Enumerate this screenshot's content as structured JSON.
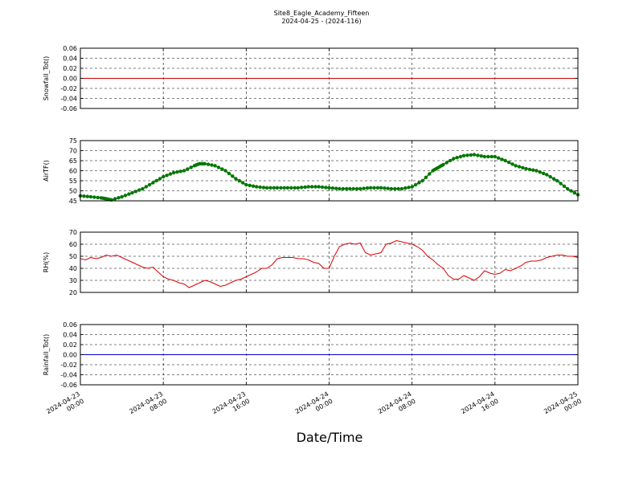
{
  "figure": {
    "title_line1": "Site8_Eagle_Academy_Fifteen",
    "title_line2": "2024-04-25 - (2024-116)",
    "xlabel": "Date/Time"
  },
  "chart_data": [
    {
      "type": "line",
      "ylabel": "Snowfall_Tot()",
      "ylim": [
        -0.06,
        0.06
      ],
      "yticks": [
        -0.06,
        -0.04,
        -0.02,
        0.0,
        0.02,
        0.04,
        0.06
      ],
      "ytick_labels": [
        "-0.06",
        "-0.04",
        "-0.02",
        "0.00",
        "0.02",
        "0.04",
        "0.06"
      ],
      "xlim_hours": [
        0,
        48
      ],
      "grid": true,
      "color": "#cc0000",
      "marker": false,
      "x_hours": [
        0,
        48
      ],
      "y": [
        0,
        0
      ]
    },
    {
      "type": "line",
      "ylabel": "AirTF()",
      "ylim": [
        45,
        75
      ],
      "yticks": [
        45,
        50,
        55,
        60,
        65,
        70,
        75
      ],
      "ytick_labels": [
        "45",
        "50",
        "55",
        "60",
        "65",
        "70",
        "75"
      ],
      "xlim_hours": [
        0,
        48
      ],
      "grid": true,
      "color": "#007700",
      "marker": true,
      "x_hours": [
        0,
        1,
        2,
        2.5,
        3,
        4,
        5,
        6,
        7,
        8,
        9,
        10,
        11,
        11.5,
        12,
        13,
        14,
        15,
        16,
        17,
        18,
        19,
        20,
        21,
        22,
        23,
        24,
        25,
        26,
        27,
        28,
        29,
        30,
        31,
        32,
        33,
        34,
        34.5,
        35,
        36,
        37,
        38,
        39,
        40,
        41,
        42,
        43,
        44,
        45,
        46,
        47,
        48
      ],
      "y": [
        47.5,
        47,
        46.5,
        46,
        45.5,
        47,
        49,
        51,
        54,
        57,
        59,
        60,
        62.5,
        63.5,
        63.5,
        62.5,
        60,
        56,
        53,
        52,
        51.5,
        51.5,
        51.5,
        51.5,
        52,
        52,
        51.5,
        51,
        51,
        51,
        51.5,
        51.5,
        51,
        51,
        52,
        55,
        60,
        61.5,
        63,
        66,
        67.5,
        68,
        67,
        67,
        65,
        62.5,
        61,
        60,
        58,
        55,
        51,
        48
      ]
    },
    {
      "type": "line",
      "ylabel": "RH(%)",
      "ylim": [
        20,
        70
      ],
      "yticks": [
        20,
        30,
        40,
        50,
        60,
        70
      ],
      "ytick_labels": [
        "20",
        "30",
        "40",
        "50",
        "60",
        "70"
      ],
      "xlim_hours": [
        0,
        48
      ],
      "grid": true,
      "color": "#dd0000",
      "marker": false,
      "x_hours": [
        0,
        0.5,
        1,
        1.5,
        2,
        2.5,
        3,
        3.5,
        4,
        4.5,
        5,
        5.5,
        6,
        6.5,
        7,
        7.5,
        8,
        8.5,
        9,
        9.5,
        10,
        10.5,
        11,
        11.5,
        12,
        12.5,
        13,
        13.5,
        14,
        14.5,
        15,
        15.5,
        16,
        16.5,
        17,
        17.5,
        18,
        18.5,
        19,
        19.5,
        20,
        20.5,
        21,
        21.5,
        22,
        22.5,
        23,
        23.5,
        24,
        24.5,
        25,
        25.5,
        26,
        26.5,
        27,
        27.5,
        28,
        28.5,
        29,
        29.5,
        30,
        30.5,
        31,
        31.5,
        32,
        32.5,
        33,
        33.5,
        34,
        34.5,
        35,
        35.5,
        36,
        36.5,
        37,
        37.5,
        38,
        38.5,
        39,
        39.5,
        40,
        40.5,
        41,
        41.5,
        42,
        42.5,
        43,
        43.5,
        44,
        44.5,
        45,
        45.5,
        46,
        46.5,
        47,
        47.5,
        48
      ],
      "y": [
        48,
        47,
        49,
        48,
        49,
        51,
        50,
        51,
        49,
        47,
        45,
        43,
        41,
        40,
        41,
        37,
        33,
        31,
        30,
        28,
        27,
        24,
        26,
        28,
        30,
        29,
        27,
        25,
        26,
        28,
        30,
        31,
        33,
        35,
        37,
        40,
        40,
        43,
        48,
        49,
        49,
        49,
        48,
        48,
        47,
        45,
        44,
        40,
        40,
        50,
        58,
        60,
        61,
        60,
        61,
        53,
        51,
        52,
        53,
        60,
        61,
        63,
        62,
        61,
        60,
        58,
        55,
        50,
        47,
        43,
        40,
        34,
        31,
        31,
        34,
        32,
        30,
        33,
        38,
        36,
        35,
        36,
        39,
        38,
        40,
        42,
        45,
        46,
        46,
        47,
        49,
        50,
        51,
        51,
        50,
        50,
        49
      ]
    },
    {
      "type": "line",
      "ylabel": "Rainfall_Tot()",
      "ylim": [
        -0.06,
        0.06
      ],
      "yticks": [
        -0.06,
        -0.04,
        -0.02,
        0.0,
        0.02,
        0.04,
        0.06
      ],
      "ytick_labels": [
        "-0.06",
        "-0.04",
        "-0.02",
        "0.00",
        "0.02",
        "0.04",
        "0.06"
      ],
      "xlim_hours": [
        0,
        48
      ],
      "grid": true,
      "color": "#0000cc",
      "marker": false,
      "x_hours": [
        0,
        48
      ],
      "y": [
        0,
        0
      ]
    }
  ],
  "x_axis": {
    "tick_hours": [
      0,
      8,
      16,
      24,
      32,
      40,
      48
    ],
    "tick_labels": [
      [
        "2024-04-23",
        "00:00"
      ],
      [
        "2024-04-23",
        "08:00"
      ],
      [
        "2024-04-23",
        "16:00"
      ],
      [
        "2024-04-24",
        "00:00"
      ],
      [
        "2024-04-24",
        "08:00"
      ],
      [
        "2024-04-24",
        "16:00"
      ],
      [
        "2024-04-25",
        "00:00"
      ]
    ]
  }
}
